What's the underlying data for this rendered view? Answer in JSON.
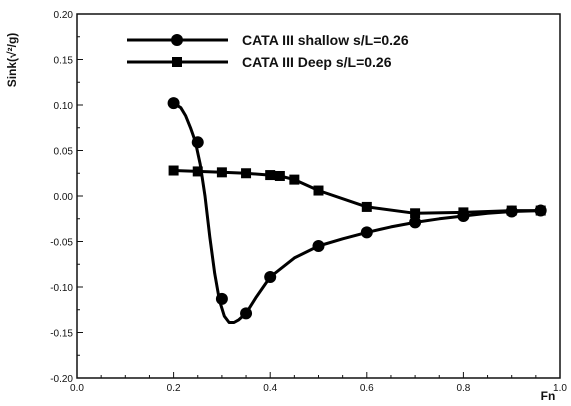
{
  "chart_data": {
    "type": "line",
    "xlabel": "Fn",
    "ylabel": "Sink(√²/g)",
    "xlim": [
      0.0,
      1.0
    ],
    "ylim": [
      -0.2,
      0.2
    ],
    "x_ticks": [
      "0.0",
      "0.2",
      "0.4",
      "0.6",
      "0.8",
      "1.0"
    ],
    "y_ticks": [
      "0.20",
      "0.15",
      "0.10",
      "0.05",
      "0.00",
      "-0.05",
      "-0.10",
      "-0.15",
      "-0.20"
    ],
    "y_tick_values": [
      0.2,
      0.15,
      0.1,
      0.05,
      0.0,
      -0.05,
      -0.1,
      -0.15,
      -0.2
    ],
    "x_tick_values": [
      0.0,
      0.2,
      0.4,
      0.6,
      0.8,
      1.0
    ],
    "grid": false,
    "legend_position": "top-center",
    "series": [
      {
        "name": "CATA III shallow s/L=0.26",
        "marker": "circle",
        "color": "#000000",
        "points": [
          {
            "x": 0.2,
            "y": 0.102
          },
          {
            "x": 0.25,
            "y": 0.059
          },
          {
            "x": 0.3,
            "y": -0.113
          },
          {
            "x": 0.35,
            "y": -0.129
          },
          {
            "x": 0.4,
            "y": -0.089
          },
          {
            "x": 0.5,
            "y": -0.055
          },
          {
            "x": 0.6,
            "y": -0.04
          },
          {
            "x": 0.7,
            "y": -0.029
          },
          {
            "x": 0.8,
            "y": -0.022
          },
          {
            "x": 0.9,
            "y": -0.017
          },
          {
            "x": 0.96,
            "y": -0.016
          }
        ],
        "curve_x": [
          0.2,
          0.215,
          0.225,
          0.235,
          0.245,
          0.255,
          0.265,
          0.275,
          0.285,
          0.295,
          0.305,
          0.315,
          0.325,
          0.335,
          0.35,
          0.37,
          0.4,
          0.45,
          0.5,
          0.55,
          0.6,
          0.65,
          0.7,
          0.75,
          0.8,
          0.85,
          0.9,
          0.96
        ],
        "curve_y": [
          0.102,
          0.097,
          0.088,
          0.075,
          0.06,
          0.035,
          0.0,
          -0.045,
          -0.085,
          -0.115,
          -0.132,
          -0.139,
          -0.139,
          -0.136,
          -0.129,
          -0.112,
          -0.089,
          -0.068,
          -0.055,
          -0.047,
          -0.04,
          -0.034,
          -0.029,
          -0.025,
          -0.022,
          -0.019,
          -0.017,
          -0.016
        ]
      },
      {
        "name": "CATA III Deep s/L=0.26",
        "marker": "square",
        "color": "#000000",
        "points": [
          {
            "x": 0.2,
            "y": 0.028
          },
          {
            "x": 0.25,
            "y": 0.027
          },
          {
            "x": 0.3,
            "y": 0.026
          },
          {
            "x": 0.35,
            "y": 0.025
          },
          {
            "x": 0.4,
            "y": 0.023
          },
          {
            "x": 0.42,
            "y": 0.022
          },
          {
            "x": 0.45,
            "y": 0.018
          },
          {
            "x": 0.5,
            "y": 0.006
          },
          {
            "x": 0.6,
            "y": -0.012
          },
          {
            "x": 0.7,
            "y": -0.019
          },
          {
            "x": 0.8,
            "y": -0.018
          },
          {
            "x": 0.9,
            "y": -0.016
          },
          {
            "x": 0.96,
            "y": -0.016
          }
        ]
      }
    ]
  }
}
